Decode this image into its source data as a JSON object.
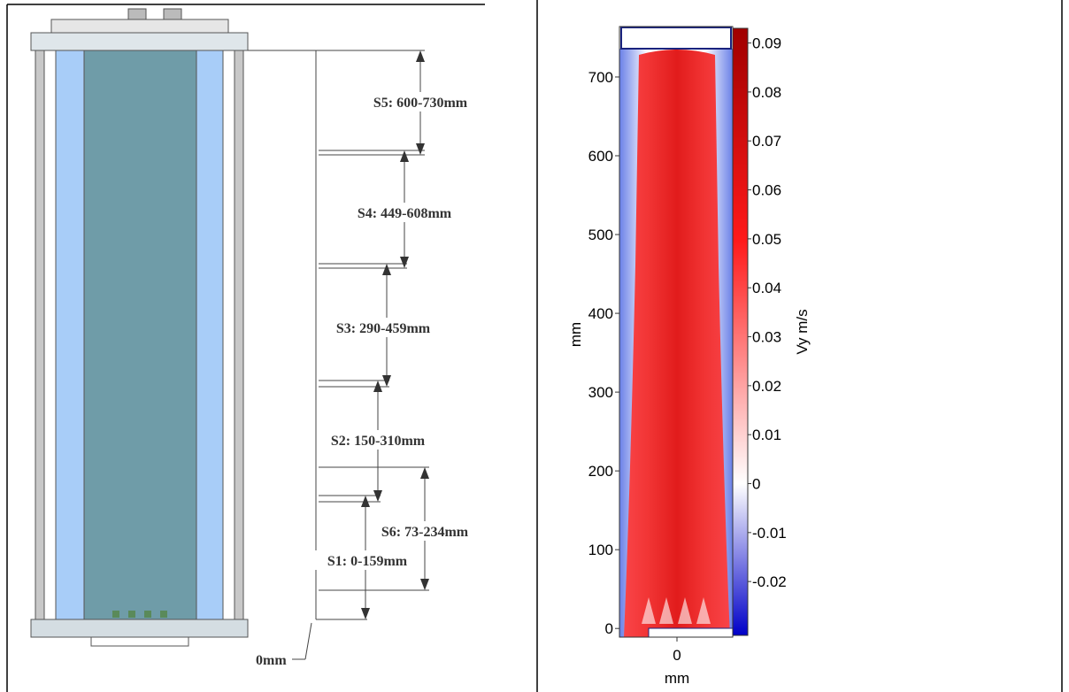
{
  "left_diagram": {
    "sections": [
      {
        "label": "S5: 600-730mm"
      },
      {
        "label": "S4: 449-608mm"
      },
      {
        "label": "S3: 290-459mm"
      },
      {
        "label": "S2: 150-310mm"
      },
      {
        "label": "S6: 73-234mm"
      },
      {
        "label": "S1: 0-159mm"
      }
    ],
    "base_label": "0mm"
  },
  "right_plot": {
    "ylim": [
      -11,
      764
    ],
    "yticks": [
      0,
      100,
      200,
      300,
      400,
      500,
      600,
      700
    ],
    "y_label": "mm",
    "xticks": [
      0
    ],
    "x_label": "mm",
    "colorbar": {
      "label": "Vy m/s",
      "lim": [
        -0.031,
        0.093
      ],
      "ticks": [
        -0.02,
        -0.01,
        0,
        0.01,
        0.02,
        0.03,
        0.04,
        0.05,
        0.06,
        0.07,
        0.08,
        0.09
      ]
    }
  }
}
